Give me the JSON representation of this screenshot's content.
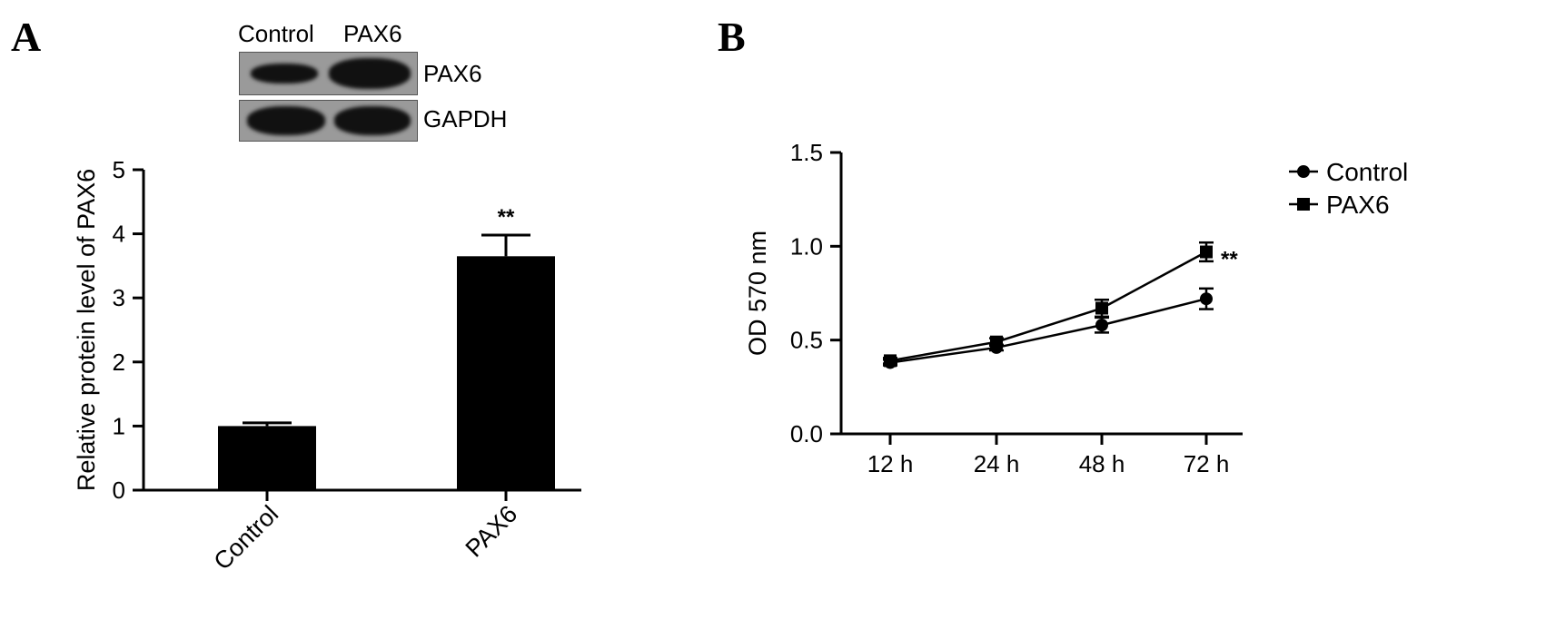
{
  "figure": {
    "panel_a_letter": "A",
    "panel_b_letter": "B"
  },
  "western_blot": {
    "lane_labels": [
      "Control",
      "PAX6"
    ],
    "row_labels": [
      "PAX6",
      "GAPDH"
    ],
    "band_intensity": {
      "PAX6": [
        0.35,
        1.0
      ],
      "GAPDH": [
        1.0,
        1.0
      ]
    }
  },
  "chart_data": [
    {
      "type": "bar",
      "panel": "A",
      "categories": [
        "Control",
        "PAX6"
      ],
      "values": [
        1.0,
        3.65
      ],
      "errors": [
        0.05,
        0.33
      ],
      "annotations": [
        "",
        "**"
      ],
      "title": "",
      "xlabel": "",
      "ylabel": "Relative protein level of PAX6",
      "ylim": [
        0,
        5
      ],
      "yticks": [
        "0",
        "1",
        "2",
        "3",
        "4",
        "5"
      ],
      "bar_color": "#000000",
      "grid": false,
      "legend": "none"
    },
    {
      "type": "line",
      "panel": "B",
      "categories": [
        "12 h",
        "24 h",
        "48 h",
        "72 h"
      ],
      "series": [
        {
          "name": "Control",
          "marker": "circle",
          "values": [
            0.38,
            0.46,
            0.58,
            0.72
          ],
          "errors": [
            0.015,
            0.015,
            0.04,
            0.055
          ]
        },
        {
          "name": "PAX6",
          "marker": "square",
          "values": [
            0.39,
            0.49,
            0.67,
            0.97
          ],
          "errors": [
            0.015,
            0.02,
            0.045,
            0.05
          ]
        }
      ],
      "annotation": {
        "series": "PAX6",
        "category": "72 h",
        "text": "**"
      },
      "title": "",
      "xlabel": "",
      "ylabel": "OD 570 nm",
      "ylim": [
        0.0,
        1.5
      ],
      "yticks": [
        "0.0",
        "0.5",
        "1.0",
        "1.5"
      ],
      "line_color": "#000000",
      "grid": false,
      "legend": "top-right"
    }
  ]
}
